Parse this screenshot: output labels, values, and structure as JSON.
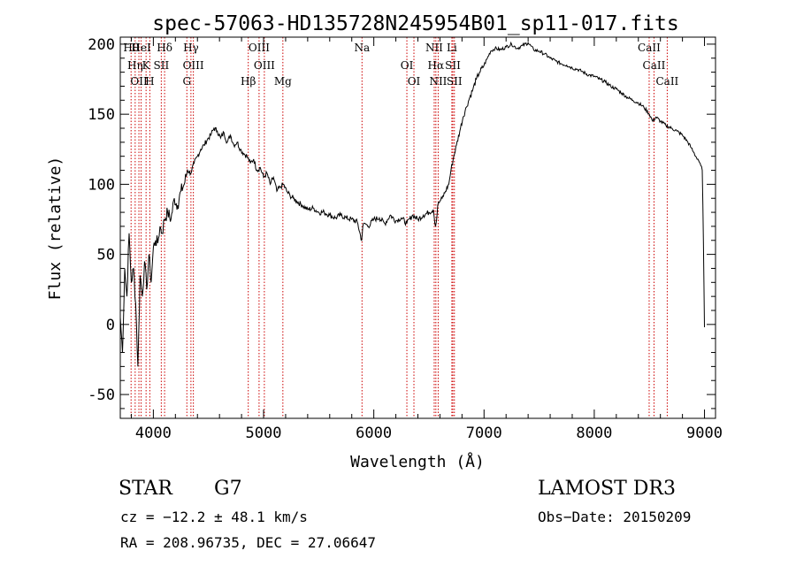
{
  "chart_data": {
    "type": "line",
    "title": "spec-57063-HD135728N245954B01_sp11-017.fits",
    "xlabel": "Wavelength (Å)",
    "ylabel": "Flux (relative)",
    "xlim": [
      3700,
      9100
    ],
    "ylim": [
      -67,
      205
    ],
    "xticks": [
      4000,
      5000,
      6000,
      7000,
      8000,
      9000
    ],
    "yticks": [
      -50,
      0,
      50,
      100,
      150,
      200
    ],
    "series": [
      {
        "name": "flux",
        "x": [
          3700,
          3720,
          3740,
          3760,
          3780,
          3800,
          3820,
          3840,
          3860,
          3880,
          3900,
          3920,
          3940,
          3960,
          3980,
          4000,
          4020,
          4040,
          4060,
          4080,
          4100,
          4130,
          4160,
          4190,
          4220,
          4250,
          4280,
          4310,
          4340,
          4370,
          4400,
          4430,
          4460,
          4490,
          4520,
          4550,
          4580,
          4610,
          4640,
          4670,
          4700,
          4730,
          4760,
          4790,
          4820,
          4850,
          4880,
          4910,
          4940,
          4970,
          5000,
          5030,
          5060,
          5090,
          5120,
          5150,
          5180,
          5210,
          5240,
          5270,
          5300,
          5350,
          5400,
          5450,
          5500,
          5550,
          5600,
          5650,
          5700,
          5750,
          5800,
          5850,
          5890,
          5900,
          5920,
          5950,
          6000,
          6050,
          6100,
          6150,
          6200,
          6250,
          6300,
          6350,
          6400,
          6450,
          6500,
          6540,
          6560,
          6570,
          6580,
          6600,
          6620,
          6650,
          6680,
          6700,
          6720,
          6750,
          6780,
          6810,
          6840,
          6870,
          6900,
          6930,
          6960,
          7000,
          7030,
          7060,
          7100,
          7150,
          7200,
          7250,
          7300,
          7350,
          7400,
          7450,
          7500,
          7550,
          7600,
          7650,
          7700,
          7750,
          7800,
          7850,
          7900,
          7950,
          8000,
          8050,
          8100,
          8150,
          8200,
          8250,
          8300,
          8350,
          8400,
          8450,
          8500,
          8530,
          8560,
          8600,
          8650,
          8700,
          8750,
          8800,
          8850,
          8880,
          8900,
          8920,
          8940,
          8960,
          8980,
          8990,
          9000
        ],
        "values": [
          5,
          -20,
          40,
          20,
          65,
          30,
          40,
          15,
          -30,
          35,
          20,
          45,
          25,
          50,
          30,
          55,
          60,
          58,
          70,
          65,
          75,
          80,
          75,
          90,
          85,
          95,
          100,
          110,
          108,
          115,
          120,
          125,
          128,
          132,
          135,
          140,
          138,
          133,
          137,
          130,
          135,
          128,
          130,
          125,
          122,
          120,
          115,
          118,
          110,
          112,
          105,
          108,
          100,
          105,
          95,
          98,
          100,
          95,
          92,
          90,
          88,
          85,
          82,
          83,
          80,
          80,
          78,
          76,
          78,
          76,
          75,
          73,
          60,
          70,
          72,
          70,
          75,
          76,
          72,
          78,
          74,
          76,
          72,
          78,
          75,
          78,
          80,
          82,
          70,
          75,
          85,
          88,
          90,
          95,
          100,
          110,
          118,
          128,
          138,
          148,
          155,
          162,
          168,
          175,
          180,
          185,
          190,
          195,
          197,
          196,
          198,
          200,
          197,
          199,
          201,
          196,
          195,
          193,
          190,
          188,
          186,
          185,
          183,
          182,
          180,
          178,
          177,
          175,
          173,
          170,
          168,
          165,
          162,
          160,
          158,
          155,
          150,
          145,
          148,
          145,
          142,
          140,
          138,
          135,
          130,
          126,
          123,
          120,
          118,
          115,
          110,
          60,
          -2
        ]
      }
    ],
    "spectral_lines": [
      {
        "x": 3798,
        "label": "Hθ"
      },
      {
        "x": 3835,
        "label": "Hη"
      },
      {
        "x": 3869,
        "label": "OII"
      },
      {
        "x": 3889,
        "label": "HeI"
      },
      {
        "x": 3934,
        "label": "K"
      },
      {
        "x": 3968,
        "label": "H"
      },
      {
        "x": 4102,
        "label": "Hδ"
      },
      {
        "x": 4072,
        "label": "SII"
      },
      {
        "x": 4304,
        "label": "G"
      },
      {
        "x": 4341,
        "label": "Hγ"
      },
      {
        "x": 4363,
        "label": "OIII"
      },
      {
        "x": 4861,
        "label": "Hβ"
      },
      {
        "x": 4959,
        "label": "OIII"
      },
      {
        "x": 5007,
        "label": "OIII"
      },
      {
        "x": 5175,
        "label": "Mg"
      },
      {
        "x": 5893,
        "label": "Na"
      },
      {
        "x": 6300,
        "label": "OI"
      },
      {
        "x": 6364,
        "label": "OI"
      },
      {
        "x": 6548,
        "label": "NII"
      },
      {
        "x": 6563,
        "label": "Hα"
      },
      {
        "x": 6584,
        "label": "NII"
      },
      {
        "x": 6708,
        "label": "Li"
      },
      {
        "x": 6717,
        "label": "SII"
      },
      {
        "x": 6731,
        "label": "SII"
      },
      {
        "x": 8498,
        "label": "CaII"
      },
      {
        "x": 8542,
        "label": "CaII"
      },
      {
        "x": 8662,
        "label": "CaII"
      }
    ]
  },
  "footer": {
    "star_type": "STAR",
    "subclass": "G7",
    "survey": "LAMOST DR3",
    "cz_text": "cz = −12.2 ± 48.1 km/s",
    "obs_date": "Obs−Date: 20150209",
    "coords": "RA = 208.96735, DEC =  27.06647"
  }
}
